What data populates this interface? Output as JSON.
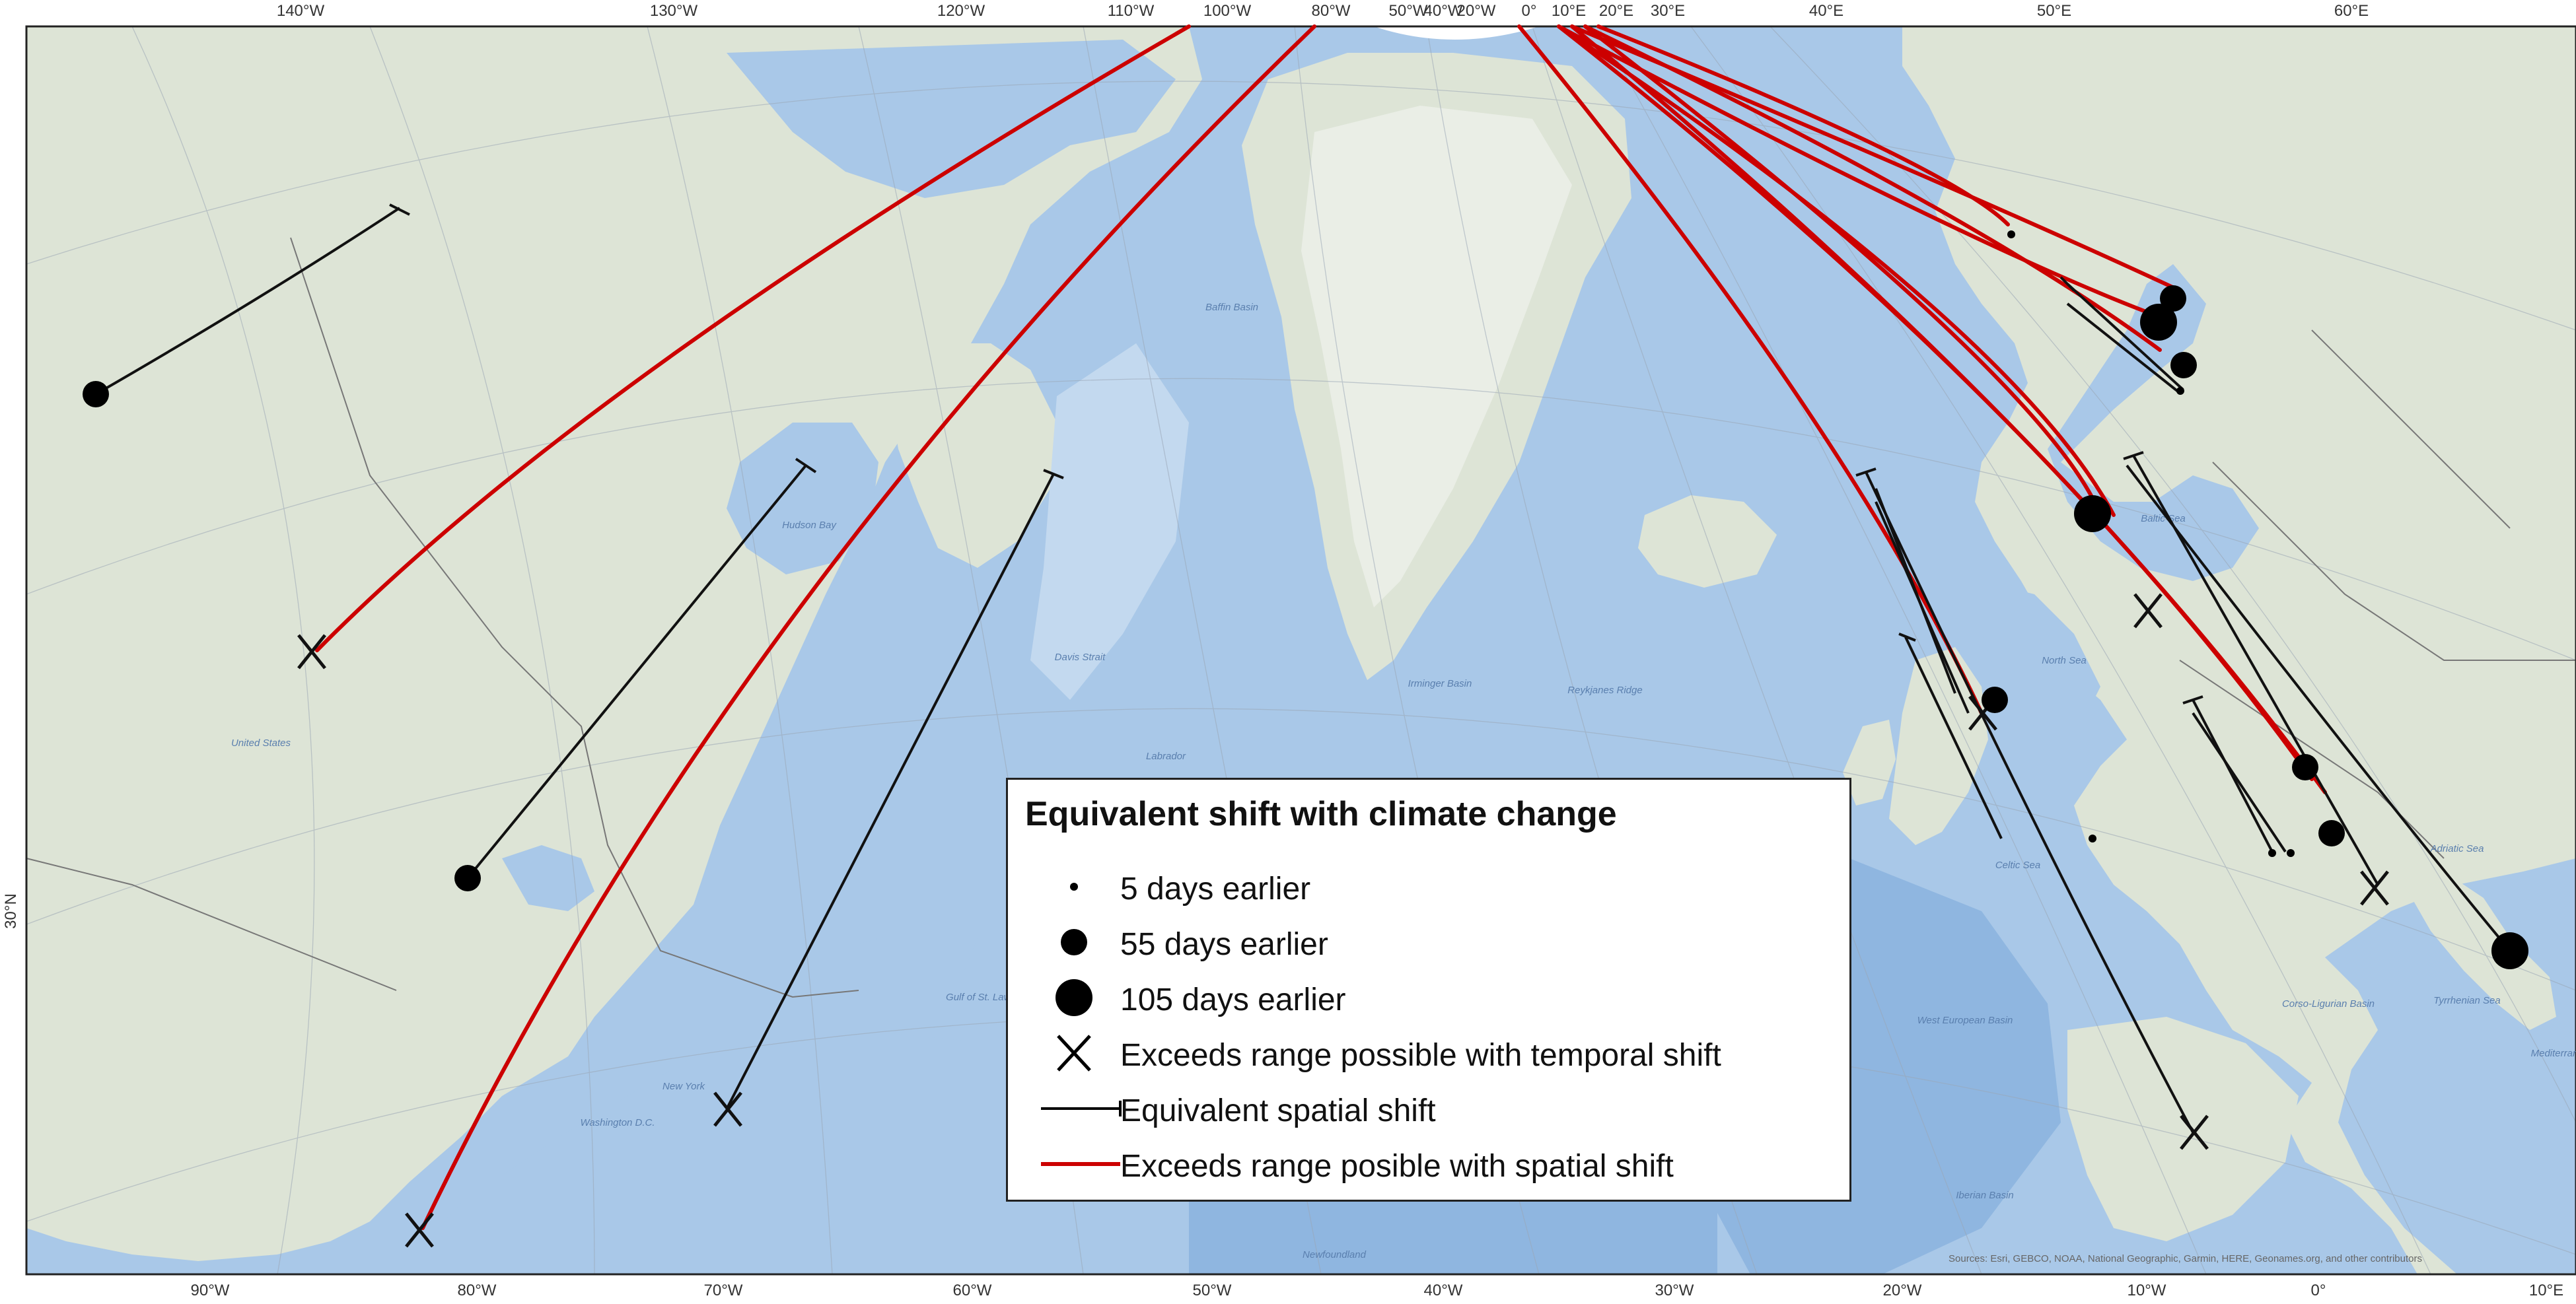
{
  "map": {
    "top_ticks": [
      "140°W",
      "130°W",
      "120°W",
      "110°W",
      "100°W",
      "80°W",
      "50°W",
      "40°W",
      "20°W",
      "0°",
      "10°E",
      "20°E",
      "30°E",
      "40°E",
      "50°E",
      "60°E"
    ],
    "bottom_ticks": [
      "90°W",
      "80°W",
      "70°W",
      "60°W",
      "50°W",
      "40°W",
      "30°W",
      "20°W",
      "10°W",
      "0°",
      "10°E"
    ],
    "left_ticks": [
      "30°N"
    ],
    "place_labels": [
      "Hudson Bay",
      "Baffin Basin",
      "Irminger Basin",
      "Labrador",
      "North Sea",
      "Baltic Sea",
      "Celtic Sea",
      "West European Basin",
      "Iberian Basin",
      "Newfoundland",
      "Tyrrhenian Sea",
      "Adriatic Sea",
      "Mediterranean",
      "United States",
      "Gulf of St. Lawrence",
      "Washington D.C.",
      "New York",
      "Corso-Ligurian Basin",
      "Reykjanes Ridge",
      "Davis Strait"
    ],
    "attribution": "Sources: Esri, GEBCO, NOAA, National Geographic, Garmin, HERE, Geonames.org, and other contributors",
    "colors": {
      "land": "#dde4d6",
      "ocean": "#a9c8e8",
      "deep_ocean": "#8fb6e0",
      "shelf": "#c3d9ef",
      "spatial_line": "#111111",
      "exceeds_spatial_line": "#cc0000"
    }
  },
  "legend": {
    "title": "Equivalent shift with climate change",
    "items": [
      {
        "label": "5 days earlier",
        "symbol": "dot-small"
      },
      {
        "label": "55 days earlier",
        "symbol": "dot-medium"
      },
      {
        "label": "105 days earlier",
        "symbol": "dot-large"
      },
      {
        "label": "Exceeds range possible with temporal shift",
        "symbol": "x-mark"
      },
      {
        "label": "Equivalent spatial shift",
        "symbol": "line-black-tbar"
      },
      {
        "label": "Exceeds range posible with spatial shift",
        "symbol": "line-red"
      }
    ]
  }
}
